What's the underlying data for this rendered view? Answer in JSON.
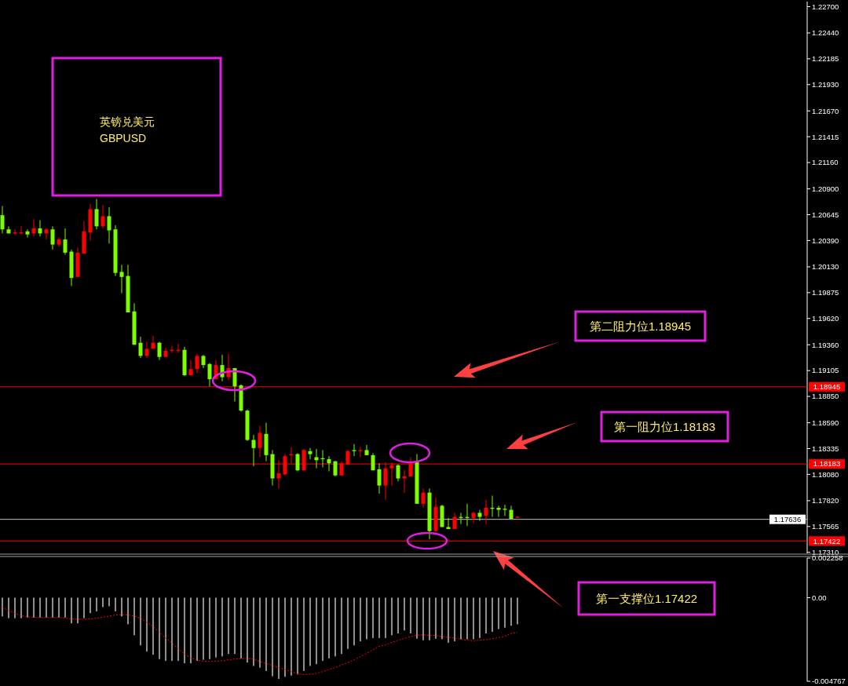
{
  "chart_data": [
    {
      "type": "candlestick",
      "tick_labels": "y",
      "categories": [
        null,
        null,
        null,
        null,
        null,
        null,
        null,
        null,
        null,
        null,
        null,
        null,
        null,
        null,
        null,
        null,
        null,
        null,
        null,
        null,
        null,
        null,
        null,
        null,
        null,
        null,
        null,
        null,
        null,
        null,
        null,
        null,
        null,
        null,
        null,
        null,
        null,
        null,
        null,
        null,
        null,
        null,
        null,
        null,
        null,
        null,
        null,
        null,
        null,
        null,
        null,
        null,
        null,
        null,
        null,
        null,
        null,
        null,
        null,
        null,
        null,
        null,
        null,
        null,
        null,
        null,
        null,
        null,
        null,
        null,
        null,
        null,
        null,
        null,
        null,
        null,
        null,
        null,
        null,
        null,
        null,
        null,
        null,
        null,
        null,
        null,
        null,
        null,
        null,
        null,
        null,
        null,
        null,
        null,
        null,
        null,
        null,
        null,
        null,
        null,
        null,
        null,
        null,
        null,
        null,
        null,
        null,
        null,
        null,
        null,
        null,
        null,
        null,
        null,
        null,
        null,
        null,
        null,
        null,
        null,
        null,
        null,
        null,
        null,
        null,
        null,
        null,
        null
      ],
      "ohlc": [
        [
          1.2064,
          1.2073,
          1.2046,
          1.205
        ],
        [
          1.205,
          1.2053,
          1.2046,
          1.2046
        ],
        [
          1.2046,
          1.205,
          1.2045,
          1.2047
        ],
        [
          1.2046,
          1.2053,
          1.2045,
          1.2047
        ],
        [
          1.2048,
          1.205,
          1.2042,
          1.2045
        ],
        [
          1.2046,
          1.206,
          1.2043,
          1.2051
        ],
        [
          1.2051,
          1.2059,
          1.2043,
          1.2046
        ],
        [
          1.2046,
          1.2051,
          1.204,
          1.205
        ],
        [
          1.205,
          1.2053,
          1.203,
          1.2035
        ],
        [
          1.2035,
          1.2042,
          1.2033,
          1.204
        ],
        [
          1.204,
          1.2051,
          1.2025,
          1.2027
        ],
        [
          1.2028,
          1.203,
          1.1994,
          1.2002
        ],
        [
          1.2003,
          1.2032,
          1.2003,
          1.2027
        ],
        [
          1.2026,
          1.2058,
          1.2026,
          1.2048
        ],
        [
          1.2047,
          1.2075,
          1.2039,
          1.207
        ],
        [
          1.207,
          1.208,
          1.205,
          1.2053
        ],
        [
          1.2053,
          1.2074,
          1.2051,
          1.2063
        ],
        [
          1.2063,
          1.2072,
          1.2036,
          1.2049
        ],
        [
          1.205,
          1.2054,
          1.2004,
          1.2007
        ],
        [
          1.2008,
          1.2015,
          1.1987,
          1.2003
        ],
        [
          1.2004,
          1.2015,
          1.1968,
          1.1968
        ],
        [
          1.1969,
          1.1977,
          1.1936,
          1.1936
        ],
        [
          1.1938,
          1.1944,
          1.1923,
          1.1925
        ],
        [
          1.1925,
          1.1939,
          1.1923,
          1.1932
        ],
        [
          1.1932,
          1.1945,
          1.1932,
          1.1938
        ],
        [
          1.1938,
          1.1939,
          1.1921,
          1.1924
        ],
        [
          1.1924,
          1.1933,
          1.1924,
          1.193
        ],
        [
          1.193,
          1.1935,
          1.1928,
          1.1931
        ],
        [
          1.193,
          1.1937,
          1.1928,
          1.1931
        ],
        [
          1.1931,
          1.1934,
          1.1905,
          1.1906
        ],
        [
          1.1906,
          1.1921,
          1.1905,
          1.1912
        ],
        [
          1.1912,
          1.1927,
          1.1908,
          1.1925
        ],
        [
          1.1925,
          1.1926,
          1.1913,
          1.1916
        ],
        [
          1.1917,
          1.1918,
          1.1895,
          1.1902
        ],
        [
          1.1902,
          1.1921,
          1.1902,
          1.1916
        ],
        [
          1.1916,
          1.1926,
          1.19,
          1.1904
        ],
        [
          1.1904,
          1.1927,
          1.1901,
          1.1913
        ],
        [
          1.1913,
          1.1913,
          1.188,
          1.1895
        ],
        [
          1.1896,
          1.1897,
          1.187,
          1.1871
        ],
        [
          1.1871,
          1.1872,
          1.1841,
          1.1842
        ],
        [
          1.1842,
          1.1847,
          1.1816,
          1.1834
        ],
        [
          1.1834,
          1.1856,
          1.1825,
          1.1849
        ],
        [
          1.1848,
          1.1859,
          1.1821,
          1.1827
        ],
        [
          1.1828,
          1.1832,
          1.1797,
          1.1804
        ],
        [
          1.1804,
          1.1822,
          1.1794,
          1.1809
        ],
        [
          1.1808,
          1.1828,
          1.1807,
          1.1826
        ],
        [
          1.1827,
          1.1835,
          1.1819,
          1.1828
        ],
        [
          1.1828,
          1.1829,
          1.1811,
          1.1812
        ],
        [
          1.1812,
          1.1833,
          1.1812,
          1.1832
        ],
        [
          1.1831,
          1.1834,
          1.1823,
          1.1828
        ],
        [
          1.1825,
          1.1833,
          1.1814,
          1.1822
        ],
        [
          1.1824,
          1.1832,
          1.1815,
          1.1823
        ],
        [
          1.1823,
          1.1826,
          1.1811,
          1.1819
        ],
        [
          1.1821,
          1.1821,
          1.1806,
          1.1807
        ],
        [
          1.1807,
          1.1821,
          1.1807,
          1.1819
        ],
        [
          1.1818,
          1.1832,
          1.1817,
          1.1831
        ],
        [
          1.1832,
          1.1838,
          1.1826,
          1.1831
        ],
        [
          1.1831,
          1.1835,
          1.1825,
          1.1832
        ],
        [
          1.1832,
          1.1837,
          1.1827,
          1.1827
        ],
        [
          1.1827,
          1.1829,
          1.1812,
          1.1812
        ],
        [
          1.1813,
          1.1819,
          1.1789,
          1.1797
        ],
        [
          1.1797,
          1.182,
          1.1783,
          1.1814
        ],
        [
          1.1814,
          1.182,
          1.1797,
          1.1817
        ],
        [
          1.1817,
          1.1818,
          1.1801,
          1.1804
        ],
        [
          1.1804,
          1.1812,
          1.179,
          1.1806
        ],
        [
          1.1806,
          1.1825,
          1.1806,
          1.182
        ],
        [
          1.182,
          1.1828,
          1.1779,
          1.1779
        ],
        [
          1.1779,
          1.1794,
          1.1775,
          1.179
        ],
        [
          1.179,
          1.1794,
          1.1744,
          1.1752
        ],
        [
          1.1752,
          1.1785,
          1.1752,
          1.1776
        ],
        [
          1.1777,
          1.1778,
          1.1756,
          1.1756
        ],
        [
          1.1756,
          1.1765,
          1.1754,
          1.1754
        ],
        [
          1.1754,
          1.177,
          1.1754,
          1.1766
        ],
        [
          1.1766,
          1.177,
          1.1759,
          1.1765
        ],
        [
          1.1766,
          1.1779,
          1.1757,
          1.1765
        ],
        [
          1.1765,
          1.1771,
          1.176,
          1.177
        ],
        [
          1.177,
          1.1773,
          1.1762,
          1.1766
        ],
        [
          1.1767,
          1.1783,
          1.1759,
          1.1775
        ],
        [
          1.1775,
          1.1787,
          1.1766,
          1.1774
        ],
        [
          1.1775,
          1.1777,
          1.1766,
          1.1773
        ],
        [
          1.1774,
          1.1778,
          1.1767,
          1.1773
        ],
        [
          1.1773,
          1.1777,
          1.1764,
          1.1764
        ],
        [
          1.1765,
          1.1767,
          1.1765,
          1.1766
        ],
        null,
        null,
        null,
        null,
        null,
        null,
        null,
        null,
        null,
        null,
        null,
        null,
        null,
        null,
        null,
        null,
        null,
        null,
        null,
        null,
        null,
        null,
        null,
        null,
        null,
        null,
        null,
        null,
        null,
        null,
        null,
        null,
        null,
        null,
        null,
        null,
        null,
        null,
        null,
        null,
        null,
        null,
        null,
        null,
        null
      ],
      "ylim": [
        1.173,
        1.2275
      ],
      "yticks": [
        {
          "value": 1.227,
          "label": "1.22700"
        },
        {
          "value": 1.2244,
          "label": "1.22440"
        },
        1.22185,
        {
          "value": 1.2193,
          "label": "1.21930"
        },
        {
          "value": 1.2167,
          "label": "1.21670"
        },
        1.21415,
        {
          "value": 1.2116,
          "label": "1.21160"
        },
        {
          "value": 1.209,
          "label": "1.20900"
        },
        1.20645,
        {
          "value": 1.2039,
          "label": "1.20390"
        },
        {
          "value": 1.2013,
          "label": "1.20130"
        },
        1.19875,
        {
          "value": 1.1962,
          "label": "1.19620"
        },
        {
          "value": 1.1936,
          "label": "1.19360"
        },
        1.19105,
        {
          "value": 1.1885,
          "label": "1.18850"
        },
        {
          "value": 1.1859,
          "label": "1.18590"
        },
        1.18335,
        {
          "value": 1.1808,
          "label": "1.18080"
        },
        {
          "value": 1.1782,
          "label": "1.17820"
        },
        1.17565,
        {
          "value": 1.1731,
          "label": "1.17310"
        }
      ],
      "ref_lines": [
        {
          "axis": "y",
          "value": 1.18945,
          "label": "1.18945",
          "color": "#ff0000"
        },
        {
          "axis": "y",
          "value": 1.18183,
          "label": "1.18183",
          "color": "#ff0000"
        },
        {
          "axis": "y",
          "value": 1.17636,
          "label": "1.17636",
          "color": "#c0c0c0"
        },
        {
          "axis": "y",
          "value": 1.17422,
          "label": "1.17422",
          "color": "#ff0000"
        }
      ],
      "annotations": [
        "英镑兑美元",
        "GBPUSD",
        "第二阻力位1.18945",
        "第一阻力位1.18183",
        "第一支撑位1.17422"
      ]
    },
    {
      "type": "bar",
      "tick_labels": "y",
      "categories": [
        null,
        null,
        null,
        null,
        null,
        null,
        null,
        null,
        null,
        null,
        null,
        null,
        null,
        null,
        null,
        null,
        null,
        null,
        null,
        null,
        null,
        null,
        null,
        null,
        null,
        null,
        null,
        null,
        null,
        null,
        null,
        null,
        null,
        null,
        null,
        null,
        null,
        null,
        null,
        null,
        null,
        null,
        null,
        null,
        null,
        null,
        null,
        null,
        null,
        null,
        null,
        null,
        null,
        null,
        null,
        null,
        null,
        null,
        null,
        null,
        null,
        null,
        null,
        null,
        null,
        null,
        null,
        null,
        null,
        null,
        null,
        null,
        null,
        null,
        null,
        null,
        null,
        null,
        null,
        null,
        null,
        null,
        null
      ],
      "ylim": [
        -0.004767,
        0.002258
      ],
      "yticks": [
        0.002258,
        {
          "value": 0,
          "label": "0.00"
        },
        -0.004767
      ],
      "series": [
        {
          "type": "bar",
          "color": "#c0c0c0",
          "values": [
            -0.00107,
            -0.00117,
            -0.00117,
            -0.00117,
            -0.00113,
            -0.00113,
            -0.00113,
            -0.00113,
            -0.00113,
            -0.00113,
            -0.00113,
            -0.00146,
            -0.00146,
            -0.00117,
            -0.00088,
            -0.00078,
            -0.00054,
            -0.00049,
            -0.00078,
            -0.00107,
            -0.00152,
            -0.00214,
            -0.00272,
            -0.00307,
            -0.00325,
            -0.0035,
            -0.0036,
            -0.0036,
            -0.0036,
            -0.00374,
            -0.00374,
            -0.0036,
            -0.00354,
            -0.0035,
            -0.00341,
            -0.00335,
            -0.00321,
            -0.00321,
            -0.00346,
            -0.0037,
            -0.00389,
            -0.00399,
            -0.00418,
            -0.00448,
            -0.00463,
            -0.00451,
            -0.00444,
            -0.00438,
            -0.00418,
            -0.00389,
            -0.00379,
            -0.0036,
            -0.00346,
            -0.00335,
            -0.00321,
            -0.00292,
            -0.00272,
            -0.00249,
            -0.00237,
            -0.0023,
            -0.0023,
            -0.0023,
            -0.00214,
            -0.00204,
            -0.00187,
            -0.00204,
            -0.00234,
            -0.00243,
            -0.00243,
            -0.00234,
            -0.00237,
            -0.00257,
            -0.00249,
            -0.00237,
            -0.00237,
            -0.00237,
            -0.0023,
            -0.00204,
            -0.00195,
            -0.00179,
            -0.00171,
            -0.0016,
            -0.00152
          ]
        },
        {
          "type": "line",
          "color": "#ff0000",
          "line_style": "dotted",
          "values": [
            -0.00054,
            -0.00074,
            -0.0009,
            -0.00103,
            -0.00109,
            -0.00113,
            -0.00113,
            -0.00113,
            -0.00113,
            -0.00113,
            -0.00117,
            -0.00121,
            -0.00123,
            -0.00123,
            -0.00121,
            -0.00117,
            -0.00111,
            -0.00105,
            -0.00099,
            -0.00097,
            -0.00099,
            -0.00105,
            -0.00117,
            -0.0014,
            -0.00165,
            -0.00198,
            -0.0023,
            -0.00259,
            -0.00292,
            -0.00321,
            -0.00344,
            -0.00356,
            -0.00362,
            -0.00364,
            -0.00362,
            -0.0036,
            -0.00354,
            -0.0035,
            -0.00348,
            -0.00346,
            -0.0035,
            -0.00364,
            -0.00376,
            -0.00385,
            -0.00399,
            -0.00409,
            -0.00422,
            -0.00434,
            -0.00438,
            -0.00436,
            -0.00432,
            -0.00422,
            -0.00409,
            -0.00399,
            -0.00383,
            -0.0037,
            -0.00354,
            -0.00337,
            -0.00317,
            -0.00296,
            -0.00278,
            -0.00269,
            -0.00255,
            -0.00243,
            -0.00232,
            -0.00222,
            -0.00214,
            -0.00212,
            -0.00214,
            -0.00216,
            -0.00222,
            -0.00226,
            -0.0023,
            -0.00237,
            -0.00243,
            -0.00245,
            -0.00243,
            -0.00239,
            -0.00234,
            -0.00228,
            -0.0022,
            -0.00204,
            -0.00198
          ]
        }
      ]
    }
  ]
}
